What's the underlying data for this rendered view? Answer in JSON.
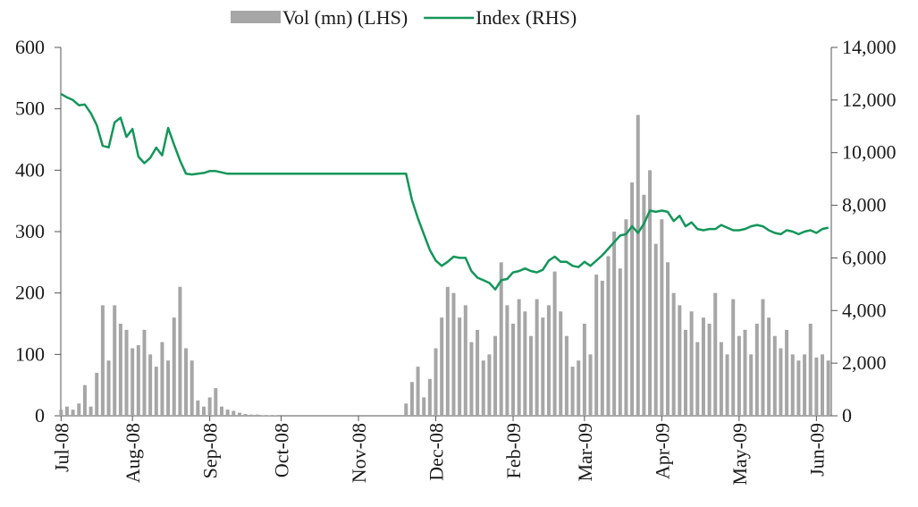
{
  "chart_data": {
    "type": "bar-line",
    "categories": [
      "Jul-08",
      null,
      null,
      null,
      null,
      null,
      null,
      null,
      null,
      null,
      null,
      null,
      "Aug-08",
      null,
      null,
      null,
      null,
      null,
      null,
      null,
      null,
      null,
      null,
      null,
      null,
      "Sep-08",
      null,
      null,
      null,
      null,
      null,
      null,
      null,
      null,
      null,
      null,
      null,
      "Oct-08",
      null,
      null,
      null,
      null,
      null,
      null,
      null,
      null,
      null,
      null,
      null,
      null,
      "Nov-08",
      null,
      null,
      null,
      null,
      null,
      null,
      null,
      null,
      null,
      null,
      null,
      null,
      "Dec-08",
      null,
      null,
      null,
      null,
      null,
      null,
      null,
      null,
      null,
      null,
      null,
      null,
      "Feb-09",
      null,
      null,
      null,
      null,
      null,
      null,
      null,
      null,
      null,
      null,
      null,
      "Mar-09",
      null,
      null,
      null,
      null,
      null,
      null,
      null,
      null,
      null,
      null,
      null,
      null,
      "Apr-09",
      null,
      null,
      null,
      null,
      null,
      null,
      null,
      null,
      null,
      null,
      null,
      null,
      "May-09",
      null,
      null,
      null,
      null,
      null,
      null,
      null,
      null,
      null,
      null,
      null,
      null,
      "Jun-09",
      null,
      null
    ],
    "series": [
      {
        "name": "Vol (mn) (LHS)",
        "type": "bar",
        "color": "#a6a6a6",
        "values": [
          10,
          15,
          10,
          20,
          50,
          15,
          70,
          180,
          90,
          180,
          150,
          140,
          110,
          115,
          140,
          100,
          80,
          120,
          90,
          160,
          210,
          110,
          90,
          25,
          15,
          30,
          45,
          15,
          10,
          8,
          5,
          3,
          2,
          2,
          1,
          1,
          1,
          0,
          0,
          0,
          0,
          0,
          0,
          0,
          0,
          0,
          0,
          0,
          0,
          0,
          0,
          0,
          0,
          0,
          0,
          0,
          0,
          0,
          20,
          55,
          80,
          30,
          60,
          110,
          160,
          210,
          200,
          160,
          180,
          120,
          140,
          90,
          100,
          130,
          250,
          180,
          150,
          190,
          170,
          130,
          190,
          160,
          180,
          235,
          170,
          130,
          80,
          90,
          150,
          100,
          230,
          220,
          260,
          300,
          240,
          320,
          380,
          490,
          360,
          400,
          280,
          320,
          250,
          200,
          180,
          140,
          170,
          120,
          160,
          150,
          200,
          120,
          100,
          190,
          130,
          140,
          100,
          150,
          190,
          160,
          130,
          110,
          140,
          100,
          90,
          100,
          150,
          95,
          100,
          90
        ]
      },
      {
        "name": "Index (RHS)",
        "type": "line",
        "axis": "y2",
        "color": "#14965a",
        "values": [
          12230,
          12100,
          12000,
          11800,
          11830,
          11500,
          11040,
          10260,
          10200,
          11150,
          11330,
          10600,
          10900,
          9850,
          9600,
          9800,
          10190,
          9900,
          10940,
          10300,
          9700,
          9200,
          9170,
          9200,
          9230,
          9300,
          9300,
          9250,
          9200,
          9200,
          9200,
          9200,
          9200,
          9200,
          9200,
          9200,
          9200,
          9200,
          9200,
          9200,
          9200,
          9200,
          9200,
          9200,
          9200,
          9200,
          9200,
          9200,
          9200,
          9200,
          9200,
          9200,
          9200,
          9200,
          9200,
          9200,
          9200,
          9200,
          9200,
          8200,
          7500,
          6900,
          6300,
          5900,
          5700,
          5850,
          6050,
          6000,
          6000,
          5500,
          5250,
          5150,
          5050,
          4800,
          5150,
          5200,
          5450,
          5500,
          5600,
          5500,
          5450,
          5550,
          5900,
          6050,
          5850,
          5850,
          5700,
          5650,
          5850,
          5700,
          5900,
          6100,
          6350,
          6600,
          6850,
          6900,
          7200,
          6950,
          7300,
          7800,
          7750,
          7800,
          7750,
          7400,
          7600,
          7200,
          7350,
          7100,
          7050,
          7100,
          7100,
          7250,
          7150,
          7050,
          7050,
          7100,
          7200,
          7250,
          7200,
          7050,
          6950,
          6900,
          7050,
          7000,
          6900,
          7000,
          7050,
          6950,
          7100,
          7150
        ]
      }
    ],
    "ylim": [
      0,
      600
    ],
    "yticks": [
      0,
      100,
      200,
      300,
      400,
      500,
      600
    ],
    "y2lim": [
      0,
      14000
    ],
    "y2ticks": [
      0,
      {
        "value": 2000,
        "label": "2,000"
      },
      {
        "value": 4000,
        "label": "4,000"
      },
      {
        "value": 6000,
        "label": "6,000"
      },
      {
        "value": 8000,
        "label": "8,000"
      },
      {
        "value": 10000,
        "label": "10,000"
      },
      {
        "value": 12000,
        "label": "12,000"
      },
      {
        "value": 14000,
        "label": "14,000"
      }
    ],
    "legend": "top"
  }
}
